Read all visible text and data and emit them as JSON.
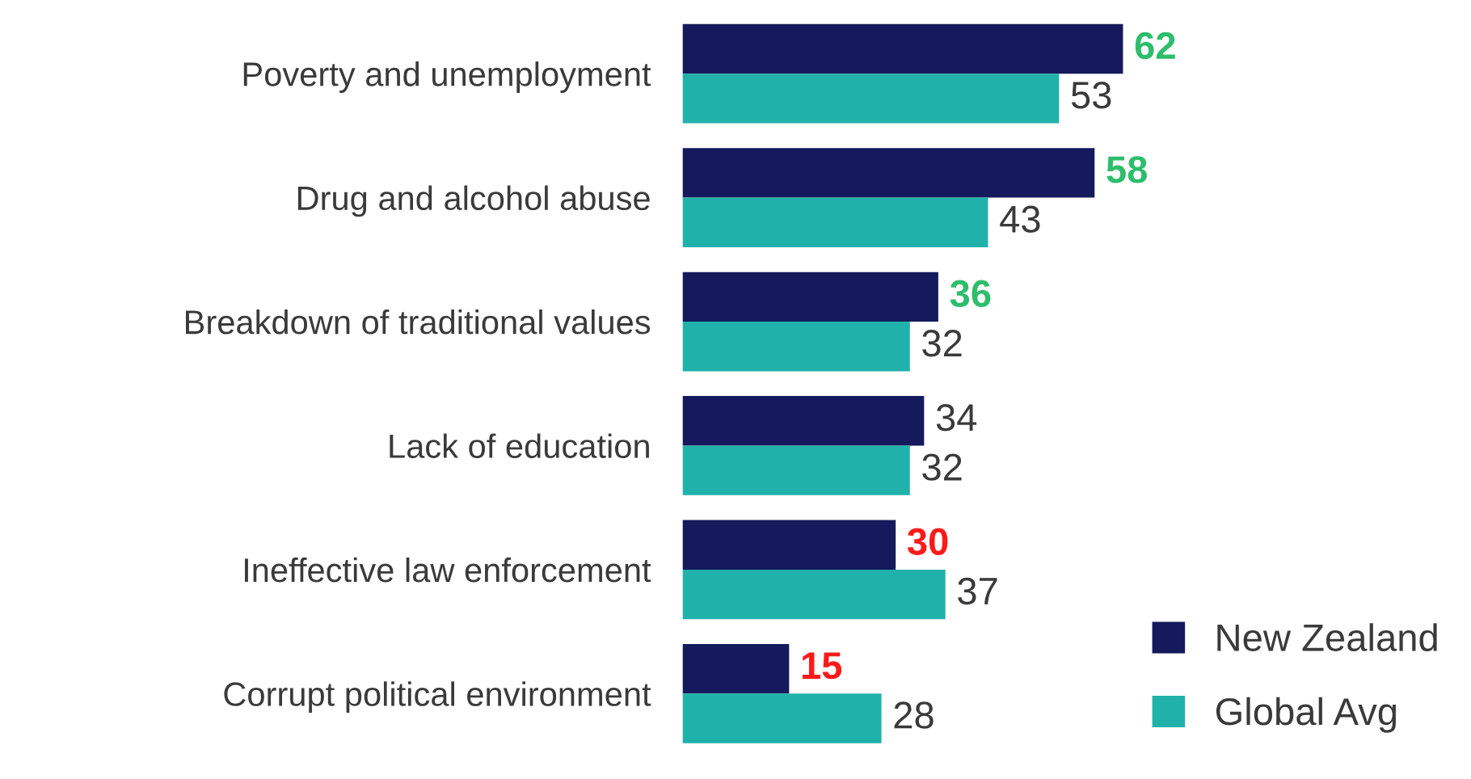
{
  "chart_data": {
    "type": "bar",
    "orientation": "horizontal",
    "categories": [
      "Poverty and unemployment",
      "Drug and alcohol abuse",
      "Breakdown of traditional values",
      "Lack of education",
      "Ineffective law enforcement",
      "Corrupt political environment"
    ],
    "series": [
      {
        "name": "New Zealand",
        "color": "#141a5c",
        "values": [
          62,
          58,
          36,
          34,
          30,
          15
        ]
      },
      {
        "name": "Global Avg",
        "color": "#20b2aa",
        "values": [
          53,
          43,
          32,
          32,
          37,
          28
        ]
      }
    ],
    "data_labels": true,
    "legend": "bottom right",
    "grid": false
  }
}
